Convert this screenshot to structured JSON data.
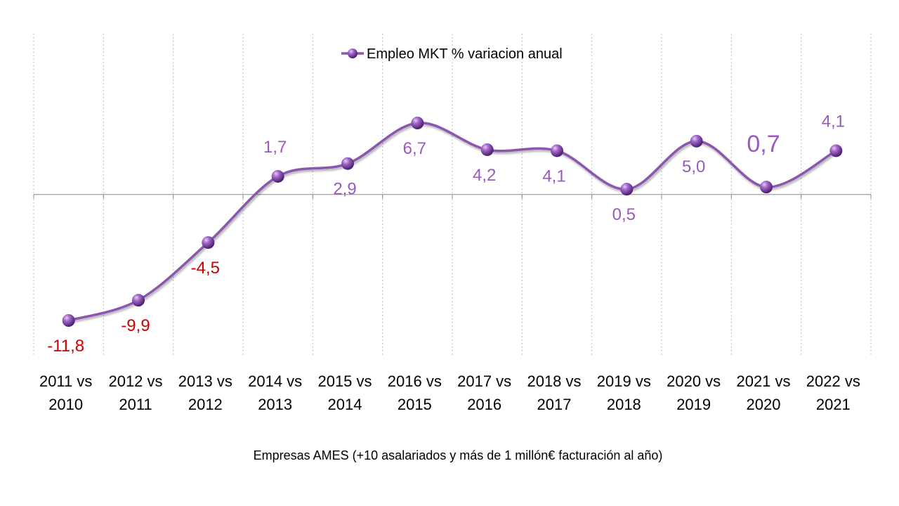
{
  "chart_data": {
    "type": "line",
    "title": "",
    "xlabel": "Empresas AMES (+10 asalariados y más de 1 millón€ facturación al año)",
    "ylabel": "",
    "legend": {
      "label": "Empleo MKT % variacion anual",
      "placement": "top-center"
    },
    "grid": {
      "vertical": true,
      "horizontal": false,
      "style": "dotted"
    },
    "ylim": [
      -11.8,
      6.7
    ],
    "categories": [
      [
        "2011 vs",
        "2010"
      ],
      [
        "2012 vs",
        "2011"
      ],
      [
        "2013 vs",
        "2012"
      ],
      [
        "2014 vs",
        "2013"
      ],
      [
        "2015 vs",
        "2014"
      ],
      [
        "2016 vs",
        "2015"
      ],
      [
        "2017 vs",
        "2016"
      ],
      [
        "2018 vs",
        "2017"
      ],
      [
        "2019 vs",
        "2018"
      ],
      [
        "2020 vs",
        "2019"
      ],
      [
        "2021 vs",
        "2020"
      ],
      [
        "2022 vs",
        "2021"
      ]
    ],
    "series": [
      {
        "name": "Empleo MKT % variacion anual",
        "values": [
          -11.8,
          -9.9,
          -4.5,
          1.7,
          2.9,
          6.7,
          4.2,
          4.1,
          0.5,
          5.0,
          0.7,
          4.1
        ],
        "labels": [
          "-11,8",
          "-9,9",
          "-4,5",
          "1,7",
          "2,9",
          "6,7",
          "4,2",
          "4,1",
          "0,5",
          "5,0",
          "0,7",
          "4,1"
        ],
        "label_positions": [
          "below",
          "below",
          "below",
          "above",
          "below",
          "below",
          "below",
          "below",
          "below",
          "below",
          "above",
          "above"
        ],
        "highlighted_label": 10
      }
    ],
    "colors": {
      "line": "#8B54B0",
      "marker": "#7B3FA0",
      "positive_label": "#9A59C0",
      "negative_label": "#CC0000",
      "axis": "#888888",
      "grid": "#BBBBBB",
      "text": "#000000"
    },
    "marker_icon": "sphere-marker"
  }
}
